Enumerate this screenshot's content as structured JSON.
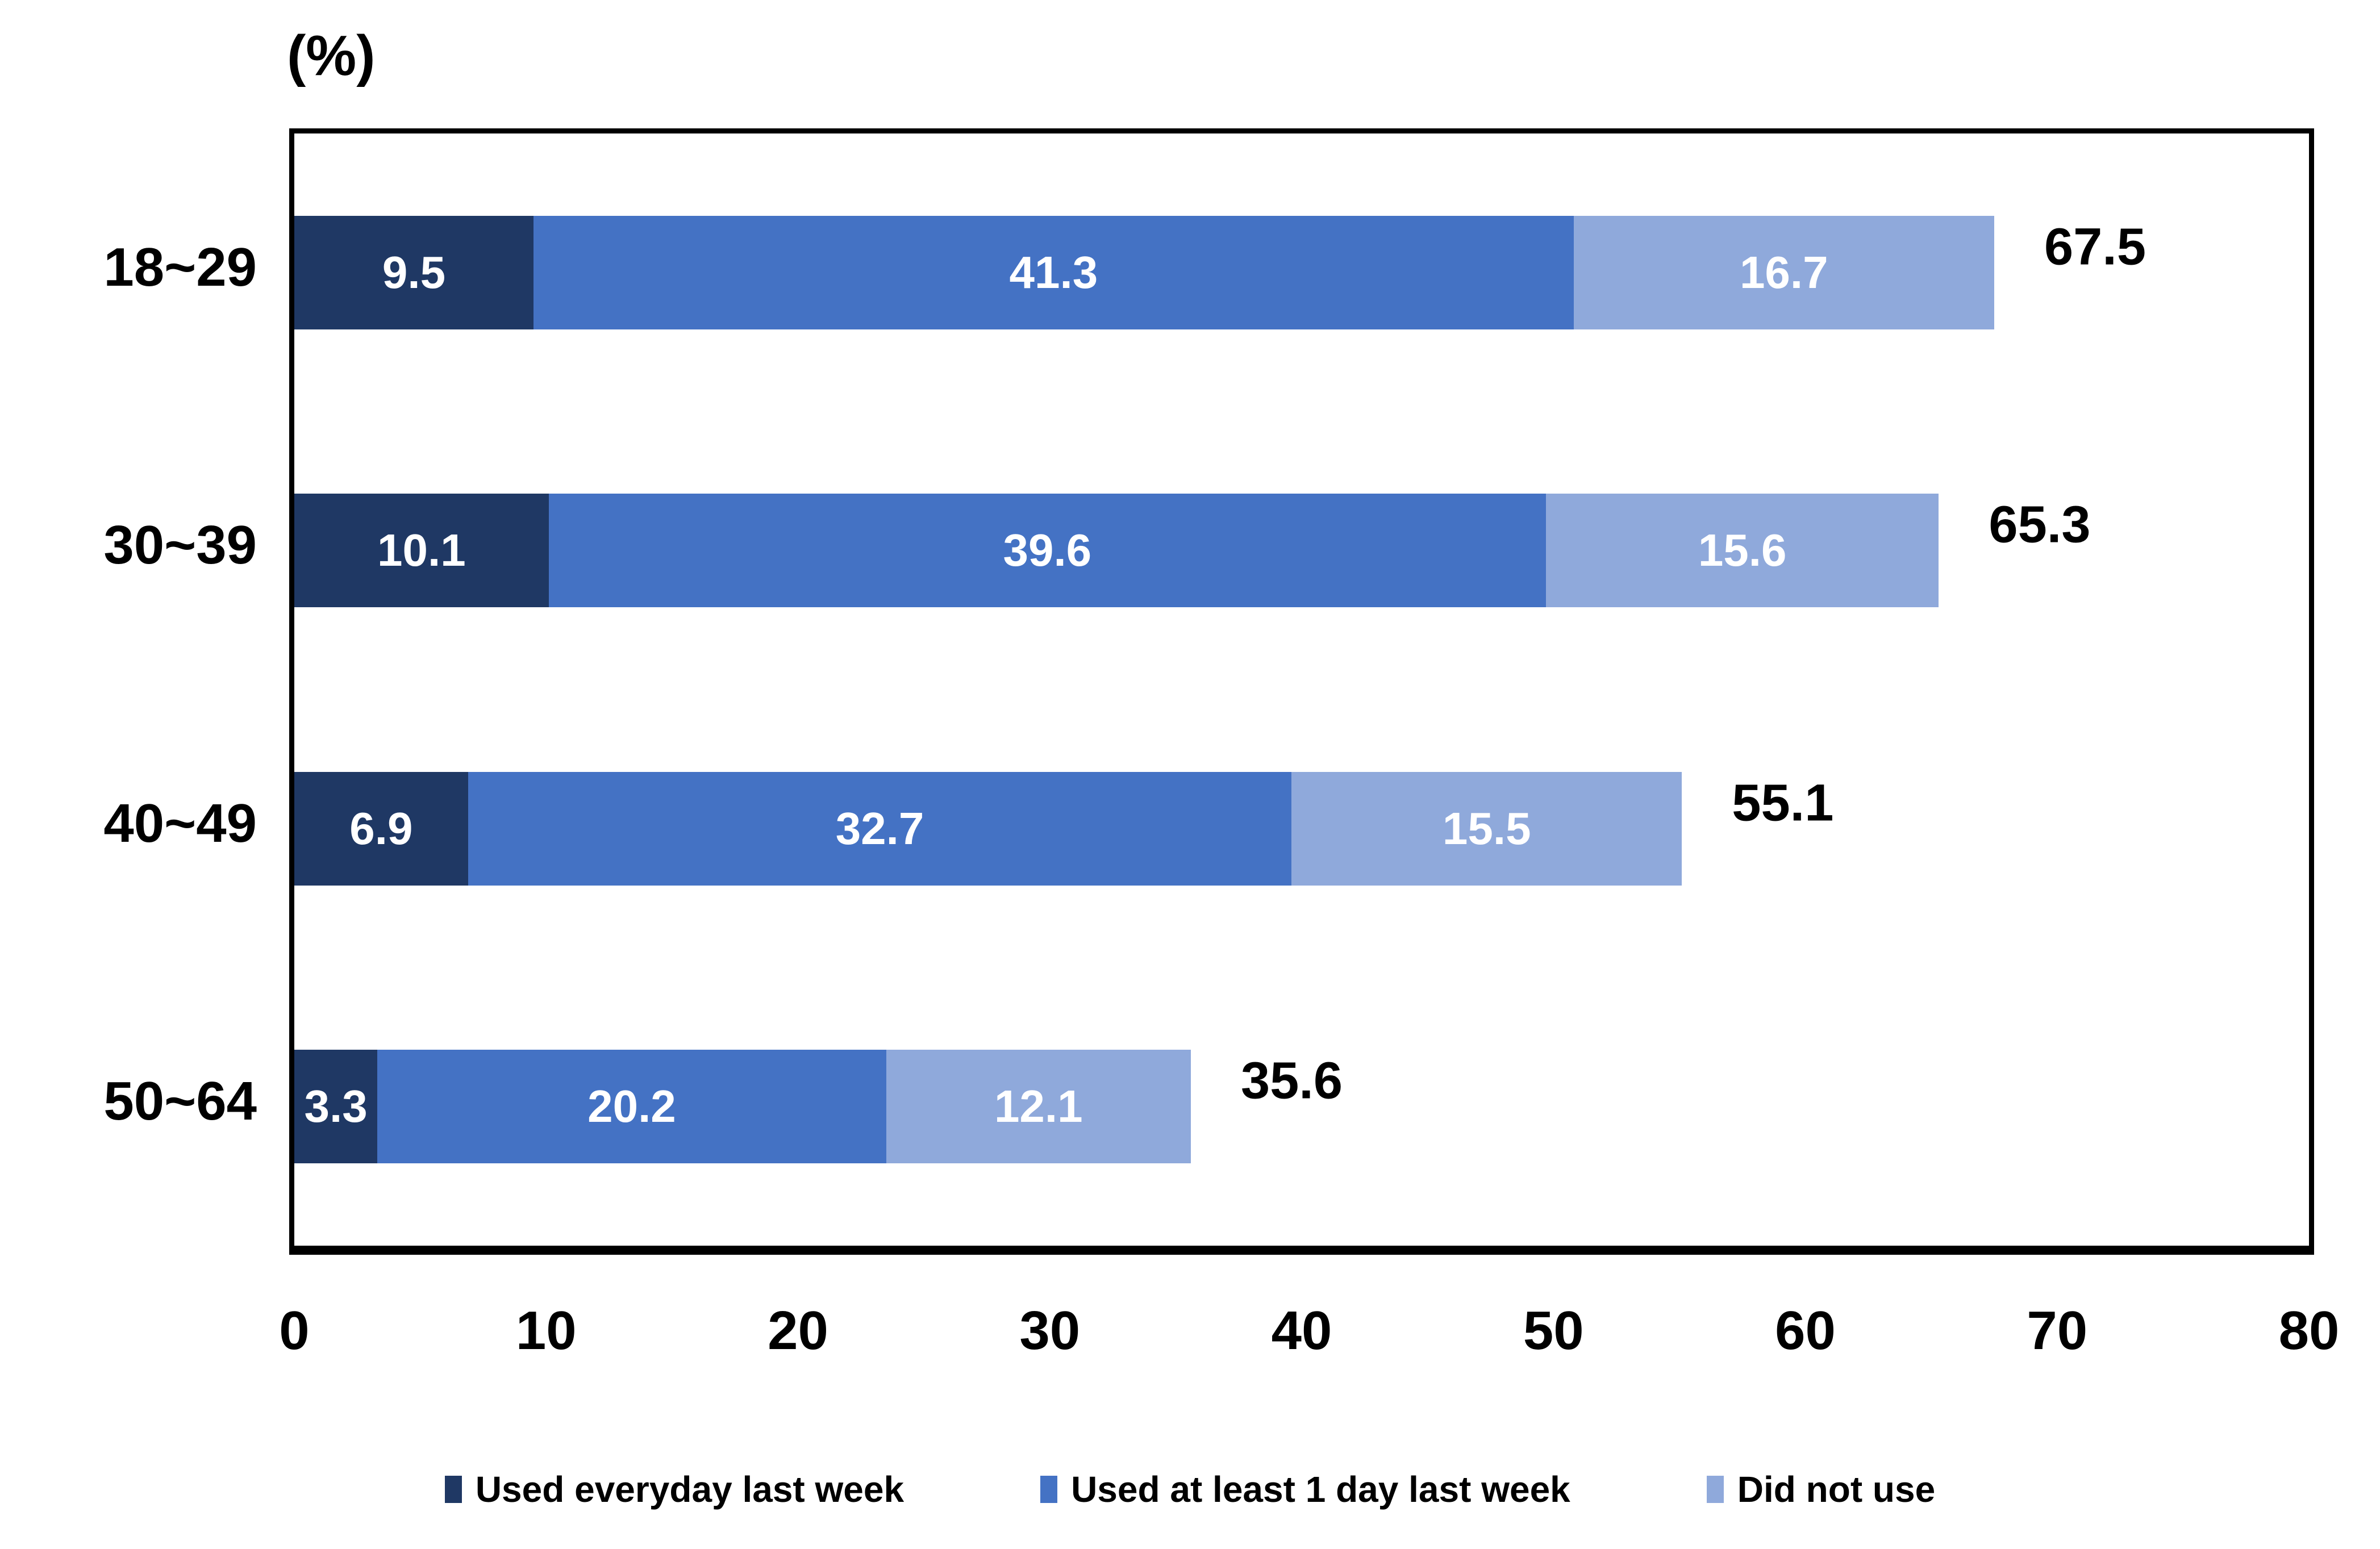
{
  "chart_data": {
    "type": "bar",
    "orientation": "horizontal",
    "stacked": true,
    "unit_label": "(%)",
    "categories": [
      "18~29",
      "30~39",
      "40~49",
      "50~64"
    ],
    "series": [
      {
        "name": "Used everyday last week",
        "color": "#1F3864",
        "values": [
          9.5,
          10.1,
          6.9,
          3.3
        ]
      },
      {
        "name": "Used at least 1 day last week",
        "color": "#4472C4",
        "values": [
          41.3,
          39.6,
          32.7,
          20.2
        ]
      },
      {
        "name": "Did not use",
        "color": "#8FA9DB",
        "values": [
          16.7,
          15.6,
          15.5,
          12.1
        ]
      }
    ],
    "totals": [
      67.5,
      65.3,
      55.1,
      35.6
    ],
    "x_ticks": [
      0,
      10,
      20,
      30,
      40,
      50,
      60,
      70,
      80
    ],
    "xlim": [
      0,
      80
    ],
    "grid": false,
    "legend_position": "bottom",
    "colors": {
      "axis": "#000000",
      "value_label": "#FFFFFF",
      "text": "#000000",
      "background": "#FFFFFF"
    }
  }
}
